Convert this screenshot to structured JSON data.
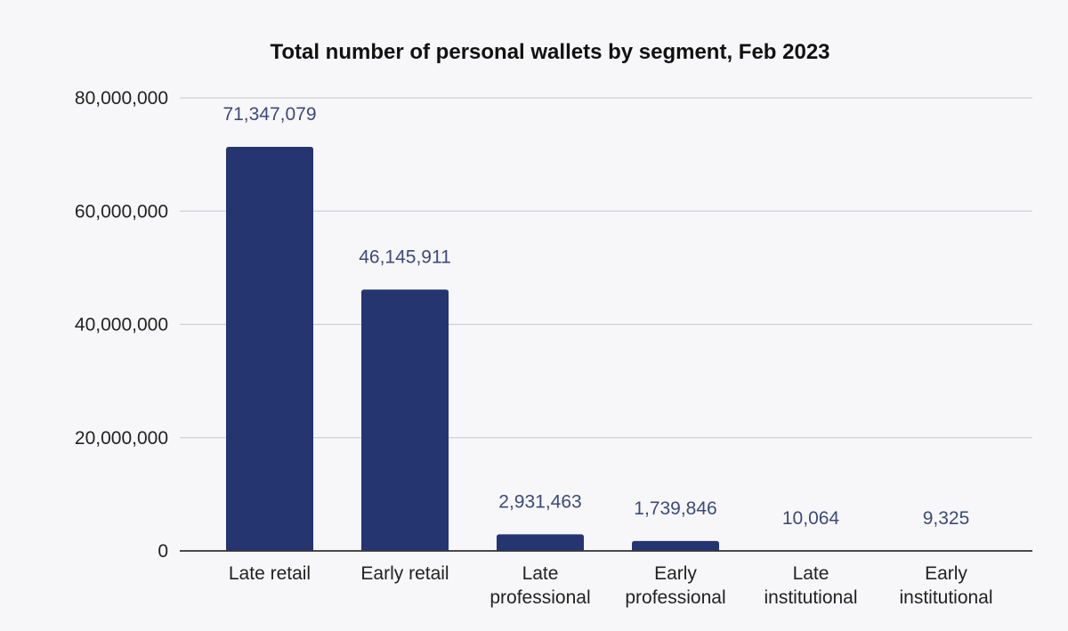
{
  "chart_data": {
    "type": "bar",
    "title": "Total number of personal wallets by segment, Feb 2023",
    "xlabel": "",
    "ylabel": "",
    "categories": [
      [
        "Late retail"
      ],
      [
        "Early retail"
      ],
      [
        "Late",
        "professional"
      ],
      [
        "Early",
        "professional"
      ],
      [
        "Late",
        "institutional"
      ],
      [
        "Early",
        "institutional"
      ]
    ],
    "values": [
      71347079,
      46145911,
      2931463,
      1739846,
      10064,
      9325
    ],
    "data_labels": [
      "71,347,079",
      "46,145,911",
      "2,931,463",
      "1,739,846",
      "10,064",
      "9,325"
    ],
    "ylim": [
      0,
      80000000
    ],
    "yticks": [
      0,
      20000000,
      40000000,
      60000000,
      80000000
    ],
    "ytick_labels": [
      "0",
      "20,000,000",
      "40,000,000",
      "60,000,000",
      "80,000,000"
    ],
    "grid": true,
    "legend": "none",
    "bar_color": "#243570",
    "label_color": "#3c4a78",
    "background_color": "#f7f7f9"
  }
}
